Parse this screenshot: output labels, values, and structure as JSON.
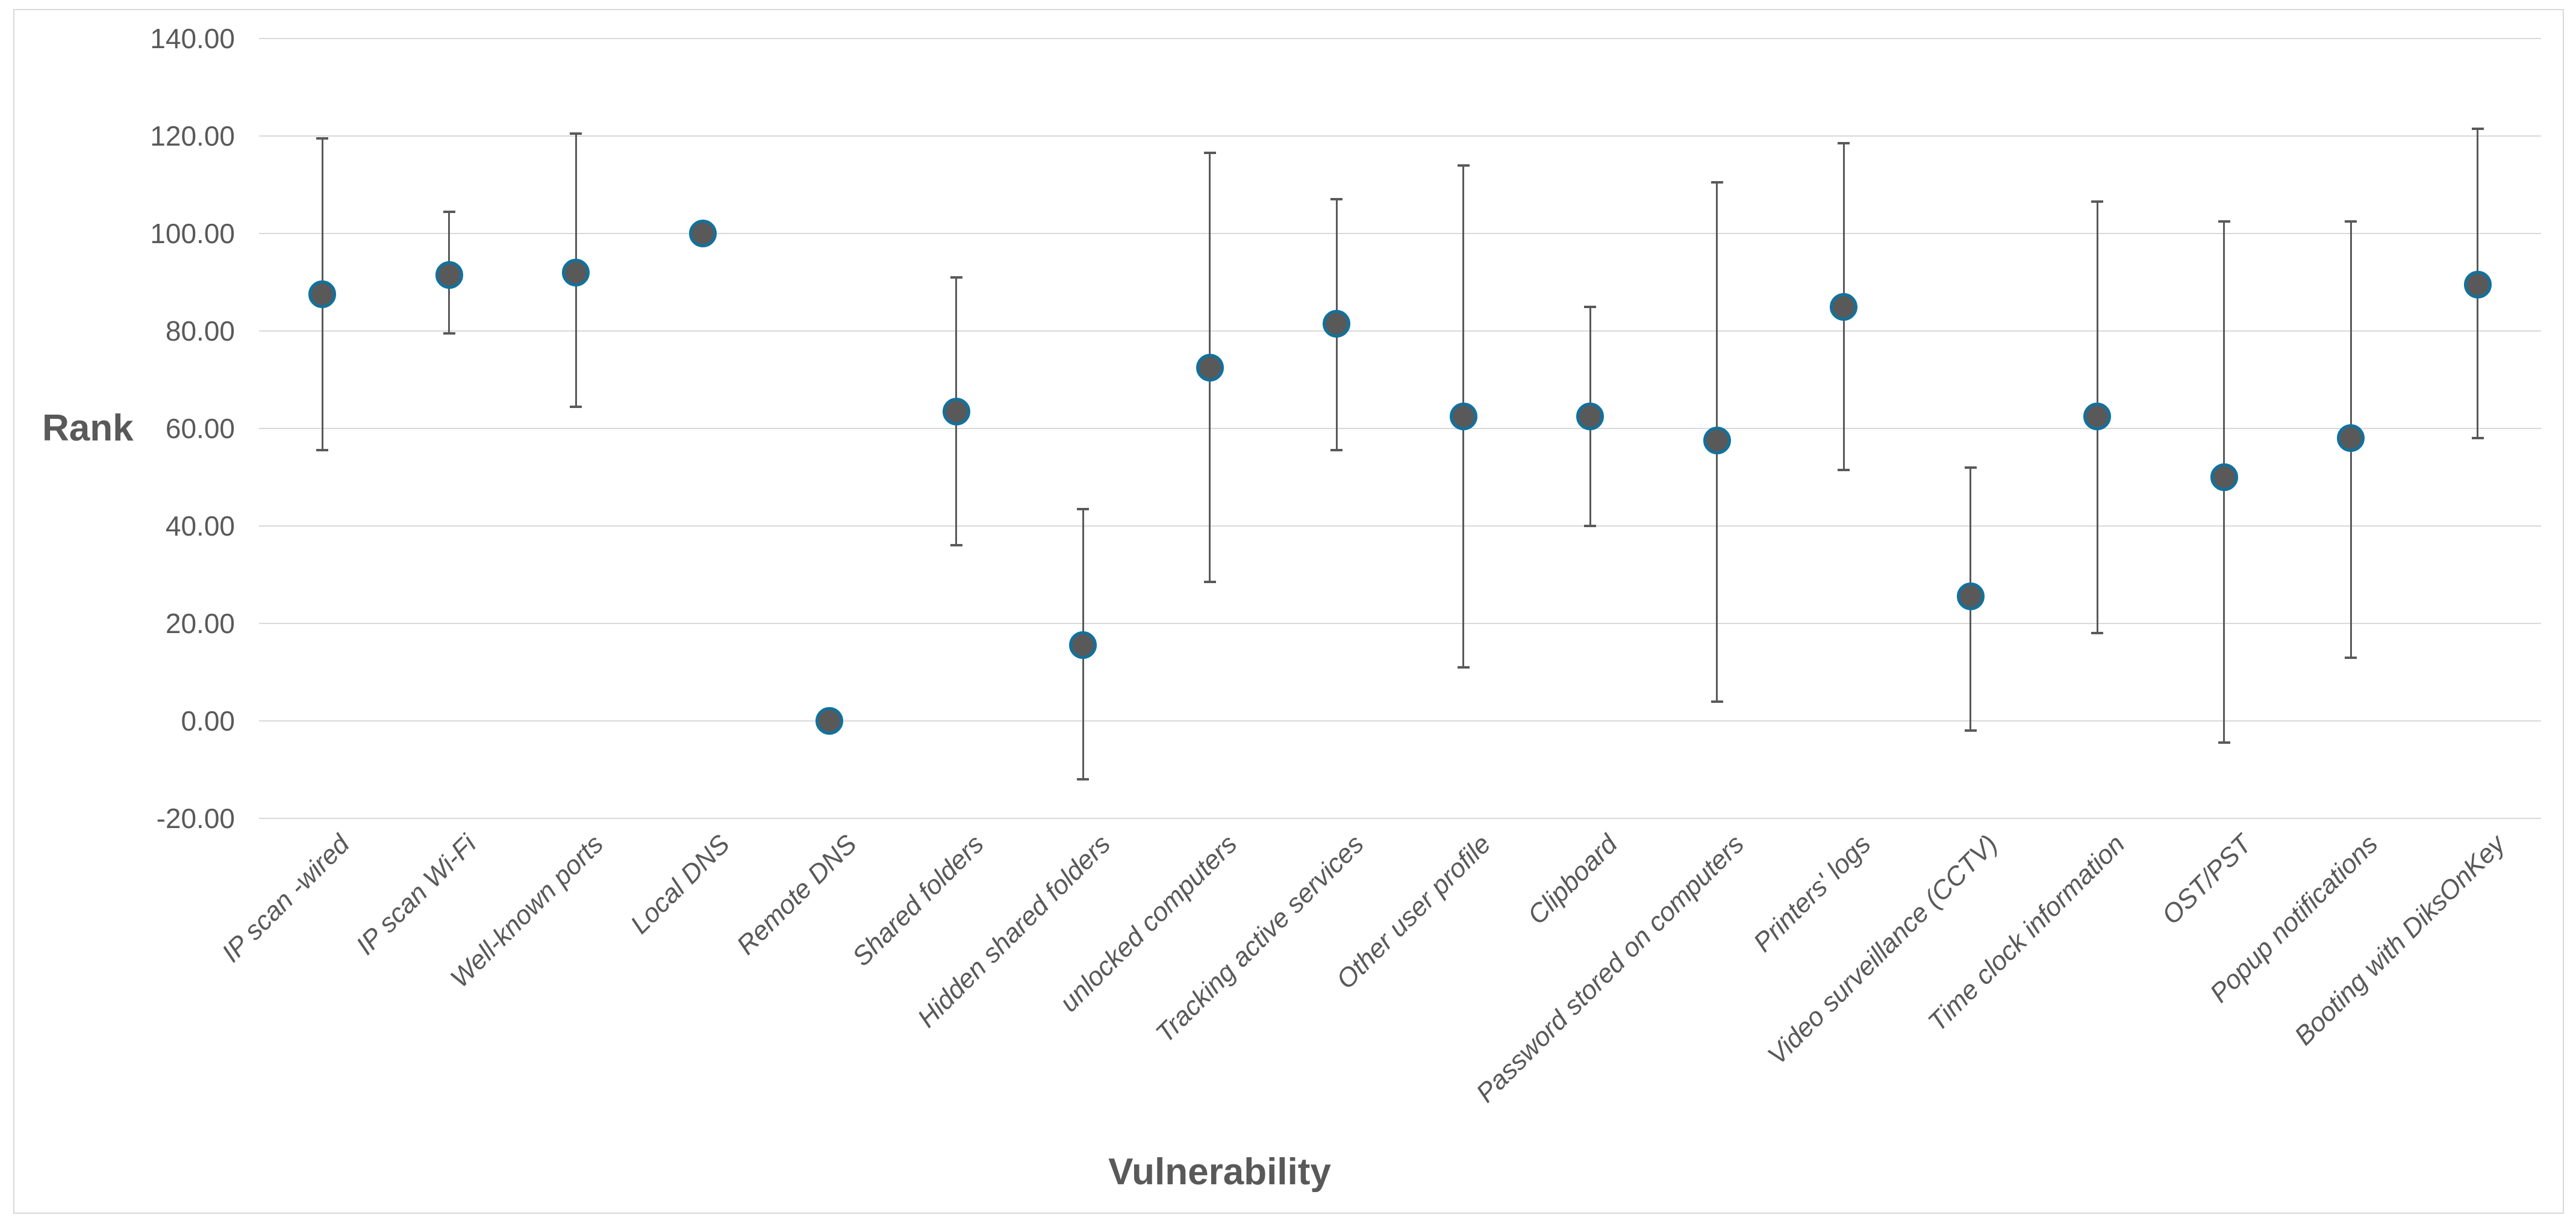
{
  "chart_data": {
    "type": "scatter",
    "title": "",
    "xlabel": "Vulnerability",
    "ylabel": "Rank",
    "ylim": [
      -20,
      140
    ],
    "ytick_step": 20,
    "ytick_decimals": 2,
    "grid": true,
    "legend": "none",
    "marker_style": "circle, gray fill, teal outline, vertical error bars with caps",
    "categories": [
      "IP scan -wired",
      "IP scan Wi-Fi",
      "Well-known ports",
      "Local DNS",
      "Remote DNS",
      "Shared folders",
      "Hidden shared folders",
      "unlocked computers",
      "Tracking active services",
      "Other user profile",
      "Clipboard",
      "Password stored on computers",
      "Printers' logs",
      "Video surveillance (CCTV)",
      "Time clock information",
      "OST/PST",
      "Popup notifications",
      "Booting with DiksOnKey"
    ],
    "series": [
      {
        "name": "Rank",
        "values": [
          87.5,
          91.5,
          92,
          100,
          0,
          63.5,
          15.5,
          72.5,
          81.5,
          62.5,
          62.5,
          57.5,
          85,
          25.5,
          62.5,
          50,
          58,
          89.5
        ],
        "error_low": [
          55.5,
          79.5,
          64.5,
          null,
          null,
          36,
          -12,
          28.5,
          55.5,
          11,
          40,
          4,
          51.5,
          -2,
          18,
          -4.5,
          13,
          58
        ],
        "error_high": [
          119.5,
          104.5,
          120.5,
          null,
          null,
          91,
          43.5,
          116.5,
          107,
          114,
          85,
          110.5,
          118.5,
          52,
          106.5,
          102.5,
          102.5,
          121.5
        ]
      }
    ]
  },
  "axis_titles": {
    "y": "Rank",
    "x": "Vulnerability"
  },
  "colors": {
    "marker_fill": "#595959",
    "marker_border": "#12719c",
    "error_bar": "#595959",
    "gridline": "#d9d9d9",
    "frame_border": "#d8d8d8",
    "text": "#595959",
    "background": "#ffffff"
  }
}
